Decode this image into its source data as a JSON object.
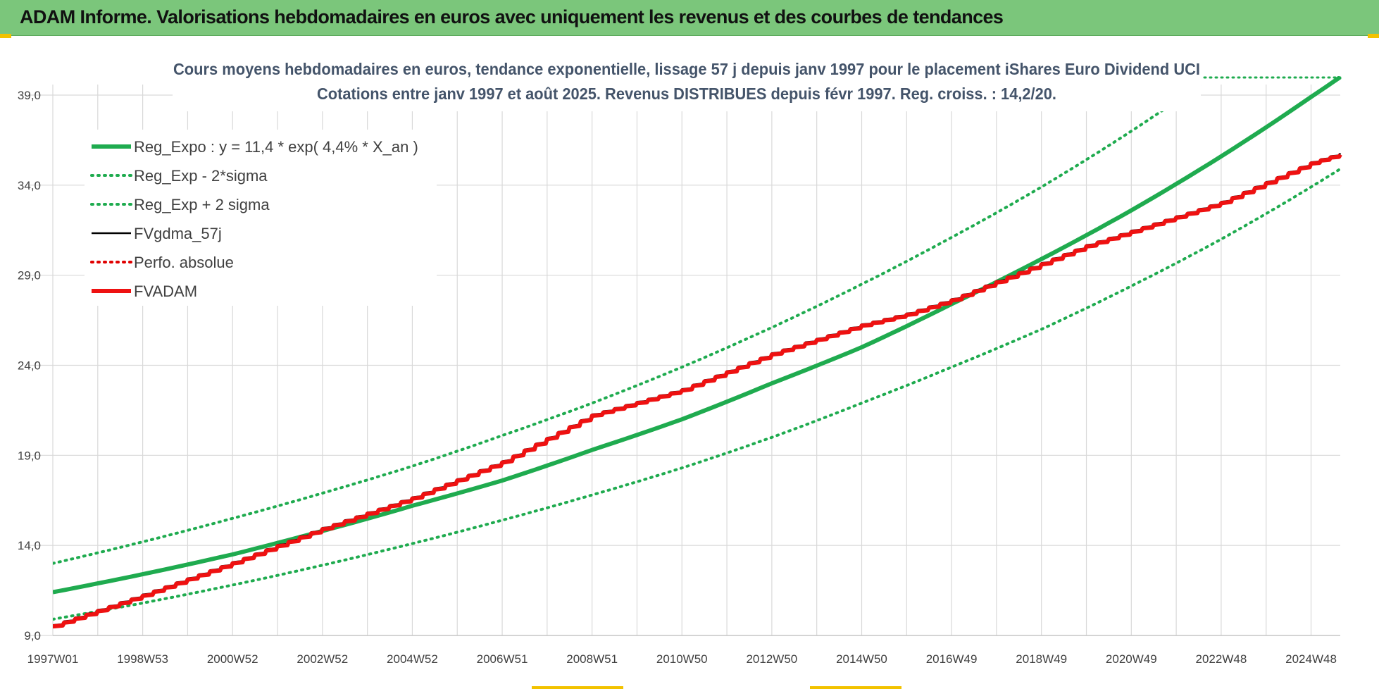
{
  "header": {
    "title": "ADAM Informe. Valorisations hebdomadaires en euros avec uniquement les revenus et des courbes de tendances"
  },
  "colors": {
    "header_bg": "#7bc67b",
    "regression": "#1fab4f",
    "sigma_band": "#1fab4f",
    "fv_gdma": "#000000",
    "perfo_absolue": "#e00000",
    "fv_adam": "#ee1111",
    "title_text": "#44546a"
  },
  "chart_data": {
    "type": "line",
    "title": "Cours moyens hebdomadaires en euros, tendance exponentielle, lissage 57 j depuis janv 1997 pour le placement iShares Euro Dividend UCI",
    "subtitle": "Cotations entre janv 1997 et août 2025.  Revenus DISTRIBUES depuis févr 1997.  Reg. croiss. : 14,2/20.",
    "xlabel": "",
    "ylabel": "",
    "x_range": [
      1997.0,
      2025.65
    ],
    "ylim": [
      9.0,
      39.0
    ],
    "y_ticks": [
      "9,0",
      "14,0",
      "19,0",
      "24,0",
      "29,0",
      "34,0",
      "39,0"
    ],
    "y_tick_values": [
      9,
      14,
      19,
      24,
      29,
      34,
      39
    ],
    "x_ticks": [
      "1997W01",
      "1998W53",
      "2000W52",
      "2002W52",
      "2004W52",
      "2006W51",
      "2008W51",
      "2010W50",
      "2012W50",
      "2014W50",
      "2016W49",
      "2018W49",
      "2020W49",
      "2022W48",
      "2024W48"
    ],
    "x_tick_values": [
      1997.0,
      1999.0,
      2001.0,
      2003.0,
      2005.0,
      2007.0,
      2009.0,
      2011.0,
      2013.0,
      2015.0,
      2017.0,
      2019.0,
      2021.0,
      2023.0,
      2025.0
    ],
    "grid": true,
    "legend_position": "top-left",
    "series": [
      {
        "name": "Reg_Expo : y = 11,4 * exp( 4,4% *  X_an )",
        "style": "solid-thick",
        "color": "#1fab4f",
        "x": [
          1997.0,
          1999.0,
          2001.0,
          2003.0,
          2005.0,
          2007.0,
          2009.0,
          2011.0,
          2013.0,
          2015.0,
          2017.0,
          2019.0,
          2021.0,
          2023.0,
          2025.0,
          2025.65
        ],
        "values": [
          11.4,
          12.4,
          13.5,
          14.8,
          16.2,
          17.6,
          19.3,
          21.0,
          23.0,
          25.0,
          27.4,
          29.9,
          32.6,
          35.6,
          38.9,
          40.0
        ]
      },
      {
        "name": "Reg_Exp - 2*sigma",
        "style": "dotted",
        "color": "#1fab4f",
        "x": [
          1997.0,
          1999.0,
          2001.0,
          2003.0,
          2005.0,
          2007.0,
          2009.0,
          2011.0,
          2013.0,
          2015.0,
          2017.0,
          2019.0,
          2021.0,
          2023.0,
          2025.0,
          2025.65
        ],
        "values": [
          9.9,
          10.8,
          11.8,
          12.9,
          14.1,
          15.4,
          16.8,
          18.3,
          20.0,
          21.9,
          23.9,
          26.0,
          28.4,
          31.0,
          33.9,
          34.9
        ]
      },
      {
        "name": "Reg_Exp + 2 sigma",
        "style": "dotted",
        "color": "#1fab4f",
        "x": [
          1997.0,
          1999.0,
          2001.0,
          2003.0,
          2005.0,
          2007.0,
          2009.0,
          2011.0,
          2013.0,
          2015.0,
          2017.0,
          2019.0,
          2021.0,
          2022.6
        ],
        "values": [
          13.0,
          14.2,
          15.5,
          16.9,
          18.4,
          20.1,
          21.9,
          23.9,
          26.1,
          28.5,
          31.1,
          33.9,
          37.0,
          39.7
        ]
      },
      {
        "name": "FVgdma_57j",
        "style": "solid",
        "color": "#000000",
        "x": [
          1997.0,
          1999.0,
          2001.0,
          2003.0,
          2005.0,
          2007.0,
          2008.0,
          2009.0,
          2010.0,
          2011.0,
          2012.0,
          2013.0,
          2014.0,
          2015.0,
          2016.0,
          2017.0,
          2018.0,
          2019.0,
          2020.0,
          2021.0,
          2022.0,
          2023.0,
          2024.0,
          2025.0,
          2025.65
        ],
        "values": [
          9.5,
          11.2,
          13.0,
          14.9,
          16.6,
          18.6,
          19.9,
          21.2,
          21.9,
          22.6,
          23.6,
          24.6,
          25.4,
          26.2,
          26.8,
          27.6,
          28.6,
          29.6,
          30.6,
          31.4,
          32.2,
          33.0,
          34.1,
          35.2,
          35.7
        ]
      },
      {
        "name": "Perfo. absolue",
        "style": "dotted",
        "color": "#e00000",
        "x": [
          1997.0,
          1999.0,
          2001.0,
          2003.0,
          2005.0,
          2007.0,
          2008.0,
          2009.0,
          2010.0,
          2011.0,
          2012.0,
          2013.0,
          2014.0,
          2015.0,
          2016.0,
          2017.0,
          2018.0,
          2019.0,
          2020.0,
          2021.0,
          2022.0,
          2023.0,
          2024.0,
          2025.0,
          2025.65
        ],
        "values": [
          9.5,
          11.2,
          13.0,
          14.9,
          16.6,
          18.6,
          19.9,
          21.2,
          21.9,
          22.6,
          23.6,
          24.6,
          25.4,
          26.2,
          26.8,
          27.6,
          28.6,
          29.6,
          30.6,
          31.4,
          32.2,
          33.0,
          34.1,
          35.2,
          35.7
        ]
      },
      {
        "name": "FVADAM",
        "style": "solid-thick",
        "color": "#ee1111",
        "x": [
          1997.0,
          1999.0,
          2001.0,
          2003.0,
          2005.0,
          2007.0,
          2008.0,
          2009.0,
          2010.0,
          2011.0,
          2012.0,
          2013.0,
          2014.0,
          2015.0,
          2016.0,
          2017.0,
          2018.0,
          2019.0,
          2020.0,
          2021.0,
          2022.0,
          2023.0,
          2024.0,
          2025.0,
          2025.65
        ],
        "values": [
          9.5,
          11.2,
          13.0,
          14.9,
          16.6,
          18.6,
          19.9,
          21.2,
          21.9,
          22.6,
          23.6,
          24.6,
          25.4,
          26.2,
          26.8,
          27.6,
          28.6,
          29.6,
          30.6,
          31.4,
          32.2,
          33.0,
          34.1,
          35.2,
          35.7
        ]
      }
    ]
  }
}
